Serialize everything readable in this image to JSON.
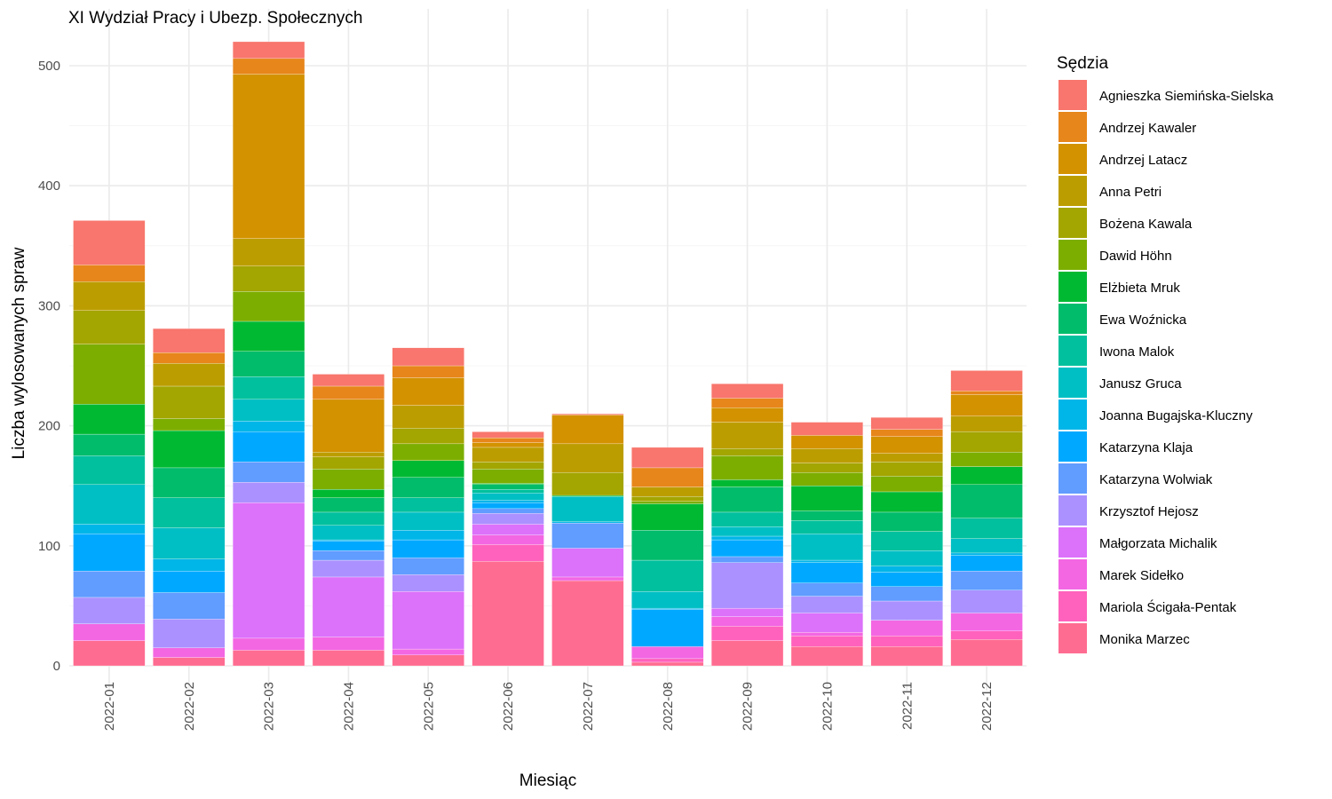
{
  "chart_data": {
    "type": "bar",
    "stacked": true,
    "title": "XI Wydział Pracy i Ubezp. Społecznych",
    "xlabel": "Miesiąc",
    "ylabel": "Liczba wylosowanych spraw",
    "ylim": [
      0,
      530
    ],
    "yticks": [
      0,
      100,
      200,
      300,
      400,
      500
    ],
    "grid": true,
    "legend_title": "Sędzia",
    "legend_position": "right",
    "categories": [
      "2022-01",
      "2022-02",
      "2022-03",
      "2022-04",
      "2022-05",
      "2022-06",
      "2022-07",
      "2022-08",
      "2022-09",
      "2022-10",
      "2022-11",
      "2022-12"
    ],
    "series": [
      {
        "name": "Agnieszka Siemińska-Sielska",
        "color": "#F8766D",
        "values": [
          37,
          20,
          14,
          10,
          15,
          5,
          1,
          17,
          12,
          11,
          10,
          17
        ]
      },
      {
        "name": "Andrzej Kawaler",
        "color": "#E7861B",
        "values": [
          14,
          9,
          13,
          11,
          10,
          4,
          0,
          16,
          8,
          0,
          6,
          3
        ]
      },
      {
        "name": "Andrzej Latacz",
        "color": "#D39200",
        "values": [
          0,
          0,
          137,
          44,
          23,
          4,
          24,
          0,
          12,
          11,
          14,
          18
        ]
      },
      {
        "name": "Anna Petri",
        "color": "#BC9D00",
        "values": [
          24,
          19,
          23,
          4,
          19,
          12,
          24,
          8,
          22,
          12,
          7,
          13
        ]
      },
      {
        "name": "Bożena Kawala",
        "color": "#A3A500",
        "values": [
          28,
          27,
          21,
          10,
          13,
          6,
          19,
          4,
          6,
          8,
          12,
          17
        ]
      },
      {
        "name": "Dawid Höhn",
        "color": "#7CAE00",
        "values": [
          50,
          10,
          25,
          17,
          14,
          12,
          0,
          2,
          20,
          11,
          13,
          12
        ]
      },
      {
        "name": "Elżbieta Mruk",
        "color": "#00B933",
        "values": [
          25,
          31,
          25,
          7,
          14,
          1,
          1,
          22,
          6,
          21,
          17,
          15
        ]
      },
      {
        "name": "Ewa Woźnicka",
        "color": "#00BC6B",
        "values": [
          18,
          25,
          21,
          12,
          17,
          4,
          0,
          25,
          21,
          8,
          16,
          28
        ]
      },
      {
        "name": "Iwona Malok",
        "color": "#00C09D",
        "values": [
          24,
          25,
          19,
          11,
          12,
          3,
          0,
          26,
          12,
          11,
          16,
          17
        ]
      },
      {
        "name": "Janusz Gruca",
        "color": "#00BFC4",
        "values": [
          33,
          26,
          18,
          12,
          15,
          6,
          21,
          14,
          8,
          22,
          13,
          12
        ]
      },
      {
        "name": "Joanna Bugajska-Kluczny",
        "color": "#00B5E8",
        "values": [
          8,
          10,
          9,
          1,
          8,
          2,
          1,
          1,
          3,
          2,
          5,
          2
        ]
      },
      {
        "name": "Katarzyna Klaja",
        "color": "#00A9FF",
        "values": [
          31,
          18,
          25,
          8,
          15,
          5,
          0,
          31,
          14,
          17,
          12,
          13
        ]
      },
      {
        "name": "Katarzyna Wolwiak",
        "color": "#619CFF",
        "values": [
          22,
          22,
          17,
          8,
          14,
          4,
          21,
          0,
          5,
          11,
          12,
          16
        ]
      },
      {
        "name": "Krzysztof Hejosz",
        "color": "#AB91FF",
        "values": [
          22,
          24,
          17,
          14,
          14,
          9,
          0,
          0,
          38,
          14,
          16,
          19
        ]
      },
      {
        "name": "Małgorzata Michalik",
        "color": "#DC71FA",
        "values": [
          0,
          0,
          113,
          50,
          48,
          9,
          24,
          0,
          7,
          16,
          0,
          0
        ]
      },
      {
        "name": "Marek Sidełko",
        "color": "#F367E3",
        "values": [
          14,
          8,
          10,
          11,
          5,
          8,
          3,
          10,
          8,
          3,
          13,
          15
        ]
      },
      {
        "name": "Mariola Ścigała-Pentak",
        "color": "#FF62BC",
        "values": [
          0,
          0,
          0,
          0,
          0,
          14,
          0,
          3,
          12,
          9,
          9,
          7
        ]
      },
      {
        "name": "Monika Marzec",
        "color": "#FF6C91",
        "values": [
          21,
          7,
          13,
          13,
          9,
          87,
          71,
          3,
          21,
          16,
          16,
          22
        ]
      }
    ]
  }
}
